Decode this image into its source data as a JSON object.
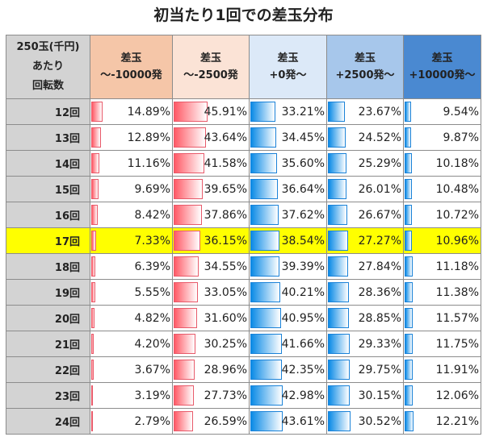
{
  "title": "初当たり1回での差玉分布",
  "header": {
    "label": [
      "250玉(千円)",
      "あたり",
      "回転数"
    ],
    "columns": [
      {
        "line1": "差玉",
        "line2": "～-10000発",
        "color": "#f5c6a8",
        "bar": "red"
      },
      {
        "line1": "差玉",
        "line2": "～-2500発",
        "color": "#fbe3d6",
        "bar": "red"
      },
      {
        "line1": "差玉",
        "line2": "+0発～",
        "color": "#dce9f8",
        "bar": "blue"
      },
      {
        "line1": "差玉",
        "line2": "+2500発～",
        "color": "#a7c7eb",
        "bar": "blue"
      },
      {
        "line1": "差玉",
        "line2": "+10000発～",
        "color": "#4a89d1",
        "bar": "blue"
      }
    ]
  },
  "highlight_color": "#ffff00",
  "highlight_row": "17回",
  "rows": [
    {
      "label": "12回",
      "values": [
        "14.89%",
        "45.91%",
        "33.21%",
        "23.67%",
        "9.54%"
      ]
    },
    {
      "label": "13回",
      "values": [
        "12.89%",
        "43.64%",
        "34.45%",
        "24.52%",
        "9.87%"
      ]
    },
    {
      "label": "14回",
      "values": [
        "11.16%",
        "41.58%",
        "35.60%",
        "25.29%",
        "10.18%"
      ]
    },
    {
      "label": "15回",
      "values": [
        "9.69%",
        "39.65%",
        "36.64%",
        "26.01%",
        "10.48%"
      ]
    },
    {
      "label": "16回",
      "values": [
        "8.42%",
        "37.86%",
        "37.62%",
        "26.67%",
        "10.72%"
      ]
    },
    {
      "label": "17回",
      "values": [
        "7.33%",
        "36.15%",
        "38.54%",
        "27.27%",
        "10.96%"
      ]
    },
    {
      "label": "18回",
      "values": [
        "6.39%",
        "34.55%",
        "39.39%",
        "27.84%",
        "11.18%"
      ]
    },
    {
      "label": "19回",
      "values": [
        "5.55%",
        "33.05%",
        "40.21%",
        "28.36%",
        "11.38%"
      ]
    },
    {
      "label": "20回",
      "values": [
        "4.82%",
        "31.60%",
        "40.95%",
        "28.85%",
        "11.57%"
      ]
    },
    {
      "label": "21回",
      "values": [
        "4.20%",
        "30.25%",
        "41.66%",
        "29.33%",
        "11.75%"
      ]
    },
    {
      "label": "22回",
      "values": [
        "3.67%",
        "28.96%",
        "42.35%",
        "29.75%",
        "11.91%"
      ]
    },
    {
      "label": "23回",
      "values": [
        "3.19%",
        "27.73%",
        "42.98%",
        "30.15%",
        "12.06%"
      ]
    },
    {
      "label": "24回",
      "values": [
        "2.79%",
        "26.59%",
        "43.61%",
        "30.52%",
        "12.21%"
      ]
    }
  ]
}
